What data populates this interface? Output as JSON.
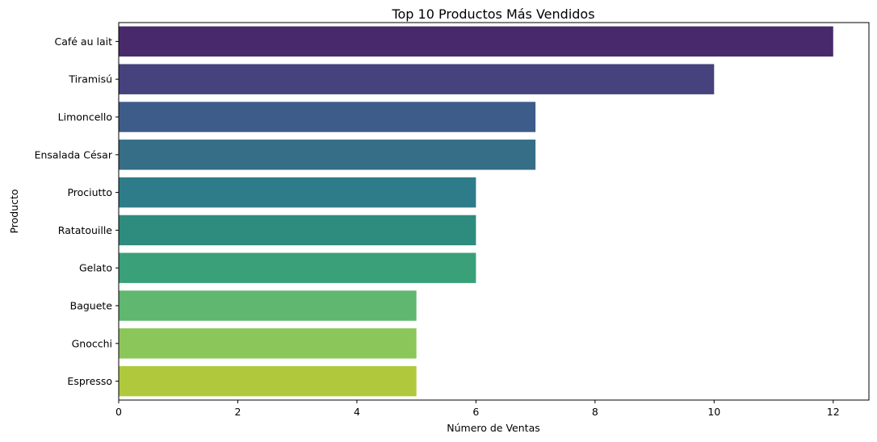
{
  "chart_data": {
    "type": "bar",
    "orientation": "horizontal",
    "title": "Top 10 Productos Más Vendidos",
    "xlabel": "Número de Ventas",
    "ylabel": "Producto",
    "categories": [
      "Café au lait",
      "Tiramisú",
      "Limoncello",
      "Ensalada César",
      "Prociutto",
      "Ratatouille",
      "Gelato",
      "Baguete",
      "Gnocchi",
      "Espresso"
    ],
    "values": [
      12,
      10,
      7,
      7,
      6,
      6,
      6,
      5,
      5,
      5
    ],
    "colors": [
      "#482a6c",
      "#46427d",
      "#3e5c8a",
      "#366d87",
      "#2e7b8a",
      "#2d8c7e",
      "#3aa079",
      "#60b76f",
      "#8bc65a",
      "#b0c93c"
    ],
    "xlim": [
      0,
      12.6
    ],
    "xticks": [
      0,
      2,
      4,
      6,
      8,
      10,
      12
    ],
    "grid": false,
    "legend": "none"
  }
}
